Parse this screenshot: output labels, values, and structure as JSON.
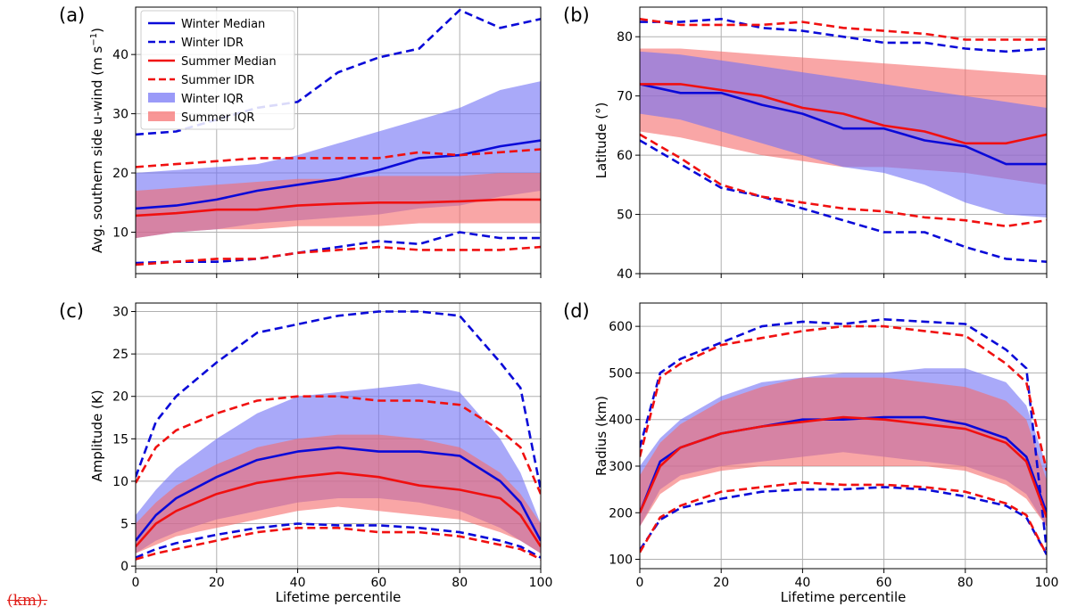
{
  "colors": {
    "winter": "#0a0ad8",
    "summer": "#f01010",
    "winter_fill": "#6f6ff5",
    "summer_fill": "#f56a6a"
  },
  "footer_text": "(km).",
  "legend": [
    {
      "label": "Winter Median",
      "style": "solid",
      "color": "winter"
    },
    {
      "label": "Winter IDR",
      "style": "dashed",
      "color": "winter"
    },
    {
      "label": "Summer Median",
      "style": "solid",
      "color": "summer"
    },
    {
      "label": "Summer IDR",
      "style": "dashed",
      "color": "summer"
    },
    {
      "label": "Winter IQR",
      "style": "patch",
      "color": "winter_fill"
    },
    {
      "label": "Summer IQR",
      "style": "patch",
      "color": "summer_fill"
    }
  ],
  "chart_data": [
    {
      "panel": "(a)",
      "type": "line",
      "title": "",
      "xlabel": "",
      "ylabel": "Avg. southern side u-wind (m s$^{-1}$)",
      "xlim": [
        0,
        100
      ],
      "ylim": [
        3,
        48
      ],
      "xticks": [
        0,
        20,
        40,
        60,
        80,
        100
      ],
      "xtick_labels": [
        "",
        "",
        "",
        "",
        "",
        ""
      ],
      "yticks": [
        10,
        20,
        30,
        40
      ],
      "ytick_labels": [
        "10",
        "20",
        "30",
        "40"
      ],
      "grid": true,
      "legend": "upper-left",
      "x": [
        0,
        10,
        20,
        30,
        40,
        50,
        60,
        70,
        80,
        90,
        100
      ],
      "series": [
        {
          "name": "Winter IQR",
          "kind": "band",
          "color": "winter_fill",
          "low": [
            9,
            10,
            10.5,
            11.5,
            12,
            12.5,
            13,
            14,
            14.5,
            16,
            17
          ],
          "high": [
            20,
            20.5,
            21,
            21.5,
            23,
            25,
            27,
            29,
            31,
            34,
            35.5
          ]
        },
        {
          "name": "Summer IQR",
          "kind": "band",
          "color": "summer_fill",
          "low": [
            9,
            10,
            10.5,
            10.5,
            11,
            11,
            11,
            11.5,
            11.5,
            11.5,
            11.5
          ],
          "high": [
            17,
            17.5,
            18,
            18.5,
            19,
            19,
            19.5,
            19.5,
            19.5,
            20,
            20
          ]
        },
        {
          "name": "Winter Median",
          "kind": "line",
          "style": "solid",
          "color": "winter",
          "values": [
            14,
            14.5,
            15.5,
            17,
            18,
            19,
            20.5,
            22.5,
            23,
            24.5,
            25.5
          ]
        },
        {
          "name": "Winter IDR",
          "kind": "line",
          "style": "dashed",
          "color": "winter",
          "values": [
            26.5,
            27,
            29,
            31,
            32,
            37,
            39.5,
            41,
            47.5,
            44.5,
            46
          ]
        },
        {
          "name": "Winter IDR",
          "kind": "line",
          "style": "dashed",
          "color": "winter",
          "values": [
            4.8,
            5,
            5,
            5.5,
            6.5,
            7.5,
            8.5,
            8,
            10,
            9,
            9
          ]
        },
        {
          "name": "Summer Median",
          "kind": "line",
          "style": "solid",
          "color": "summer",
          "values": [
            12.8,
            13.2,
            13.8,
            13.8,
            14.5,
            14.8,
            15,
            15,
            15.2,
            15.5,
            15.5
          ]
        },
        {
          "name": "Summer IDR",
          "kind": "line",
          "style": "dashed",
          "color": "summer",
          "values": [
            21,
            21.5,
            22,
            22.5,
            22.5,
            22.5,
            22.5,
            23.5,
            23,
            23.5,
            24
          ]
        },
        {
          "name": "Summer IDR",
          "kind": "line",
          "style": "dashed",
          "color": "summer",
          "values": [
            4.5,
            5,
            5.5,
            5.5,
            6.5,
            7,
            7.5,
            7,
            7,
            7,
            7.5
          ]
        }
      ]
    },
    {
      "panel": "(b)",
      "type": "line",
      "title": "",
      "xlabel": "",
      "ylabel": "Latitude (°)",
      "xlim": [
        0,
        100
      ],
      "ylim": [
        40,
        85
      ],
      "xticks": [
        0,
        20,
        40,
        60,
        80,
        100
      ],
      "xtick_labels": [
        "",
        "",
        "",
        "",
        "",
        ""
      ],
      "yticks": [
        40,
        50,
        60,
        70,
        80
      ],
      "ytick_labels": [
        "40",
        "50",
        "60",
        "70",
        "80"
      ],
      "grid": true,
      "x": [
        0,
        10,
        20,
        30,
        40,
        50,
        60,
        70,
        80,
        90,
        100
      ],
      "series": [
        {
          "name": "Summer IQR",
          "kind": "band",
          "color": "summer_fill",
          "low": [
            64,
            63,
            61.5,
            60,
            59,
            58,
            58,
            57.5,
            57,
            56,
            55
          ],
          "high": [
            78,
            78,
            77.5,
            77,
            76.5,
            76,
            75.5,
            75,
            74.5,
            74,
            73.5
          ]
        },
        {
          "name": "Winter IQR",
          "kind": "band",
          "color": "winter_fill",
          "low": [
            67,
            66,
            64,
            62,
            60,
            58,
            57,
            55,
            52,
            50,
            49.5
          ],
          "high": [
            77.5,
            77,
            76,
            75,
            74,
            73,
            72,
            71,
            70,
            69,
            68
          ]
        },
        {
          "name": "Winter Median",
          "kind": "line",
          "style": "solid",
          "color": "winter",
          "values": [
            72,
            70.5,
            70.5,
            68.5,
            67,
            64.5,
            64.5,
            62.5,
            61.5,
            58.5,
            58.5
          ]
        },
        {
          "name": "Winter IDR",
          "kind": "line",
          "style": "dashed",
          "color": "winter",
          "values": [
            82.5,
            82.5,
            83,
            81.5,
            81,
            80,
            79,
            79,
            78,
            77.5,
            78
          ]
        },
        {
          "name": "Winter IDR",
          "kind": "line",
          "style": "dashed",
          "color": "winter",
          "values": [
            62.5,
            58.5,
            54.5,
            53,
            51,
            49,
            47,
            47,
            44.5,
            42.5,
            42
          ]
        },
        {
          "name": "Summer Median",
          "kind": "line",
          "style": "solid",
          "color": "summer",
          "values": [
            72,
            72,
            71,
            70,
            68,
            67,
            65,
            64,
            62,
            62,
            63.5
          ]
        },
        {
          "name": "Summer IDR",
          "kind": "line",
          "style": "dashed",
          "color": "summer",
          "values": [
            83,
            82,
            82,
            82,
            82.5,
            81.5,
            81,
            80.5,
            79.5,
            79.5,
            79.5
          ]
        },
        {
          "name": "Summer IDR",
          "kind": "line",
          "style": "dashed",
          "color": "summer",
          "values": [
            63.5,
            59.5,
            55,
            53,
            52,
            51,
            50.5,
            49.5,
            49,
            48,
            49
          ]
        }
      ]
    },
    {
      "panel": "(c)",
      "type": "line",
      "title": "",
      "xlabel": "Lifetime percentile",
      "ylabel": "Amplitude (K)",
      "xlim": [
        0,
        100
      ],
      "ylim": [
        -0.3,
        31
      ],
      "xticks": [
        0,
        20,
        40,
        60,
        80,
        100
      ],
      "xtick_labels": [
        "0",
        "20",
        "40",
        "60",
        "80",
        "100"
      ],
      "yticks": [
        0,
        5,
        10,
        15,
        20,
        25,
        30
      ],
      "ytick_labels": [
        "0",
        "5",
        "10",
        "15",
        "20",
        "25",
        "30"
      ],
      "grid": true,
      "x": [
        0,
        5,
        10,
        20,
        30,
        40,
        50,
        60,
        70,
        80,
        90,
        95,
        100
      ],
      "series": [
        {
          "name": "Winter IQR",
          "kind": "band",
          "color": "winter_fill",
          "low": [
            1.5,
            3,
            4,
            5.5,
            6.5,
            7.5,
            8,
            8,
            7.5,
            6.5,
            4.5,
            3,
            1.5
          ],
          "high": [
            6,
            9,
            11.5,
            15,
            18,
            20,
            20.5,
            21,
            21.5,
            20.5,
            15,
            11,
            5
          ]
        },
        {
          "name": "Summer IQR",
          "kind": "band",
          "color": "summer_fill",
          "low": [
            1.5,
            2.5,
            3.5,
            4.5,
            5.5,
            6.5,
            7,
            6.5,
            6,
            5.5,
            4,
            3,
            1.5
          ],
          "high": [
            5,
            7.5,
            9.5,
            12,
            14,
            15,
            15.5,
            15.5,
            15,
            14,
            11,
            8.5,
            5
          ]
        },
        {
          "name": "Winter Median",
          "kind": "line",
          "style": "solid",
          "color": "winter",
          "values": [
            3,
            6,
            8,
            10.5,
            12.5,
            13.5,
            14,
            13.5,
            13.5,
            13,
            10,
            7.5,
            3
          ]
        },
        {
          "name": "Winter IDR",
          "kind": "line",
          "style": "dashed",
          "color": "winter",
          "values": [
            10.5,
            17,
            20,
            24,
            27.5,
            28.5,
            29.5,
            30,
            30,
            29.5,
            24,
            21,
            9
          ]
        },
        {
          "name": "Winter IDR",
          "kind": "line",
          "style": "dashed",
          "color": "winter",
          "values": [
            1,
            2,
            2.7,
            3.7,
            4.5,
            5,
            4.8,
            4.8,
            4.5,
            4,
            3,
            2.3,
            1
          ]
        },
        {
          "name": "Summer Median",
          "kind": "line",
          "style": "solid",
          "color": "summer",
          "values": [
            2.3,
            5,
            6.5,
            8.5,
            9.8,
            10.5,
            11,
            10.5,
            9.5,
            9,
            8,
            6,
            2.3
          ]
        },
        {
          "name": "Summer IDR",
          "kind": "line",
          "style": "dashed",
          "color": "summer",
          "values": [
            9.8,
            14,
            16,
            18,
            19.5,
            20,
            20,
            19.5,
            19.5,
            19,
            16,
            14,
            8.5
          ]
        },
        {
          "name": "Summer IDR",
          "kind": "line",
          "style": "dashed",
          "color": "summer",
          "values": [
            0.8,
            1.5,
            2,
            3,
            4,
            4.5,
            4.5,
            4,
            4,
            3.5,
            2.5,
            2,
            0.8
          ]
        }
      ]
    },
    {
      "panel": "(d)",
      "type": "line",
      "title": "",
      "xlabel": "Lifetime percentile",
      "ylabel": "Radius (km)",
      "xlim": [
        0,
        100
      ],
      "ylim": [
        80,
        650
      ],
      "xticks": [
        0,
        20,
        40,
        60,
        80,
        100
      ],
      "xtick_labels": [
        "0",
        "20",
        "40",
        "60",
        "80",
        "100"
      ],
      "yticks": [
        100,
        200,
        300,
        400,
        500,
        600
      ],
      "ytick_labels": [
        "100",
        "200",
        "300",
        "400",
        "500",
        "600"
      ],
      "grid": true,
      "x": [
        0,
        5,
        10,
        20,
        30,
        40,
        50,
        60,
        70,
        80,
        90,
        95,
        100
      ],
      "series": [
        {
          "name": "Winter IQR",
          "kind": "band",
          "color": "winter_fill",
          "low": [
            170,
            250,
            280,
            300,
            310,
            320,
            330,
            320,
            310,
            300,
            270,
            240,
            170
          ],
          "high": [
            300,
            360,
            400,
            450,
            480,
            490,
            500,
            500,
            510,
            510,
            480,
            430,
            300
          ]
        },
        {
          "name": "Summer IQR",
          "kind": "band",
          "color": "summer_fill",
          "low": [
            170,
            240,
            270,
            290,
            300,
            300,
            300,
            300,
            300,
            290,
            260,
            230,
            170
          ],
          "high": [
            280,
            350,
            390,
            440,
            470,
            490,
            490,
            490,
            480,
            470,
            440,
            400,
            270
          ]
        },
        {
          "name": "Winter Median",
          "kind": "line",
          "style": "solid",
          "color": "winter",
          "values": [
            200,
            310,
            340,
            370,
            385,
            400,
            400,
            405,
            405,
            390,
            360,
            320,
            200
          ]
        },
        {
          "name": "Winter IDR",
          "kind": "line",
          "style": "dashed",
          "color": "winter",
          "values": [
            340,
            500,
            530,
            565,
            600,
            610,
            605,
            615,
            610,
            605,
            550,
            510,
            120
          ]
        },
        {
          "name": "Winter IDR",
          "kind": "line",
          "style": "dashed",
          "color": "winter",
          "values": [
            120,
            185,
            210,
            230,
            245,
            250,
            250,
            255,
            250,
            235,
            215,
            190,
            110
          ]
        },
        {
          "name": "Summer Median",
          "kind": "line",
          "style": "solid",
          "color": "summer",
          "values": [
            200,
            300,
            340,
            370,
            385,
            395,
            405,
            400,
            390,
            380,
            350,
            310,
            190
          ]
        },
        {
          "name": "Summer IDR",
          "kind": "line",
          "style": "dashed",
          "color": "summer",
          "values": [
            320,
            490,
            520,
            560,
            575,
            590,
            600,
            600,
            590,
            580,
            520,
            480,
            290
          ]
        },
        {
          "name": "Summer IDR",
          "kind": "line",
          "style": "dashed",
          "color": "summer",
          "values": [
            115,
            190,
            215,
            245,
            255,
            265,
            260,
            260,
            255,
            245,
            220,
            195,
            110
          ]
        }
      ]
    }
  ]
}
